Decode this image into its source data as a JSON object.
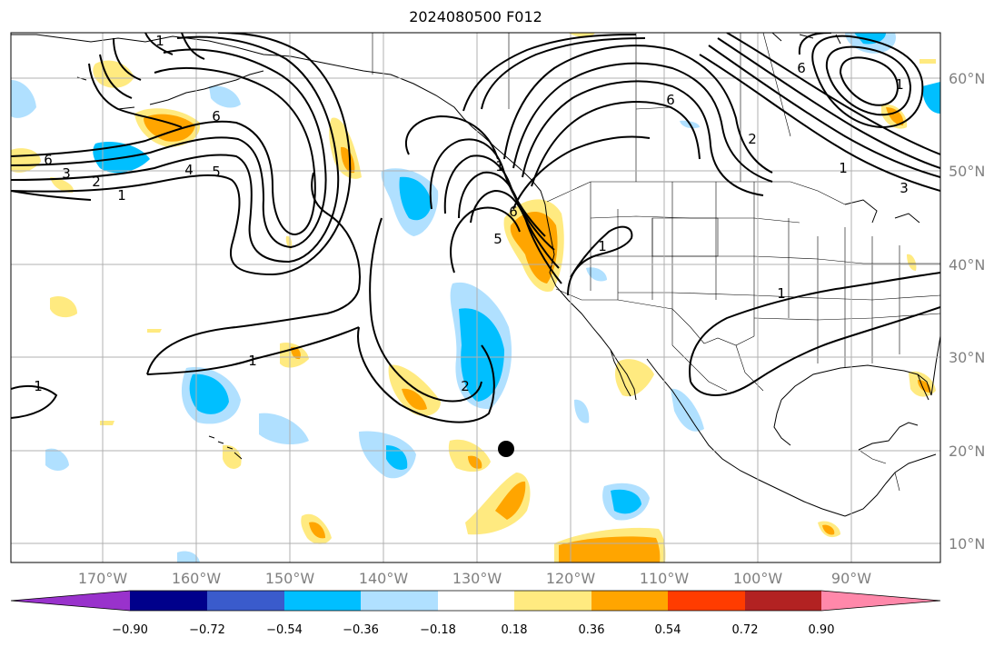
{
  "map": {
    "title": "2024080500 F012",
    "lon_labels": [
      "170°W",
      "160°W",
      "150°W",
      "140°W",
      "130°W",
      "120°W",
      "110°W",
      "100°W",
      "90°W"
    ],
    "lat_labels": [
      "60°N",
      "50°N",
      "40°N",
      "30°N",
      "20°N",
      "10°N"
    ],
    "contour_labels": [
      "1",
      "1",
      "2",
      "3",
      "4",
      "5",
      "6",
      "6",
      "6",
      "1",
      "1",
      "1",
      "2",
      "5",
      "6",
      "6",
      "1",
      "1",
      "2",
      "3",
      "1",
      "1"
    ],
    "marker": "storm-center"
  },
  "colorbar": {
    "tick_labels": [
      "−0.90",
      "−0.72",
      "−0.54",
      "−0.36",
      "−0.18",
      "0.18",
      "0.36",
      "0.54",
      "0.72",
      "0.90"
    ],
    "colors": [
      "#9932cc",
      "#00008b",
      "#3a5bcc",
      "#00bfff",
      "#b0e0ff",
      "#ffffff",
      "#ffea80",
      "#ffa500",
      "#ff3c00",
      "#b22222",
      "#ff88aa"
    ]
  }
}
